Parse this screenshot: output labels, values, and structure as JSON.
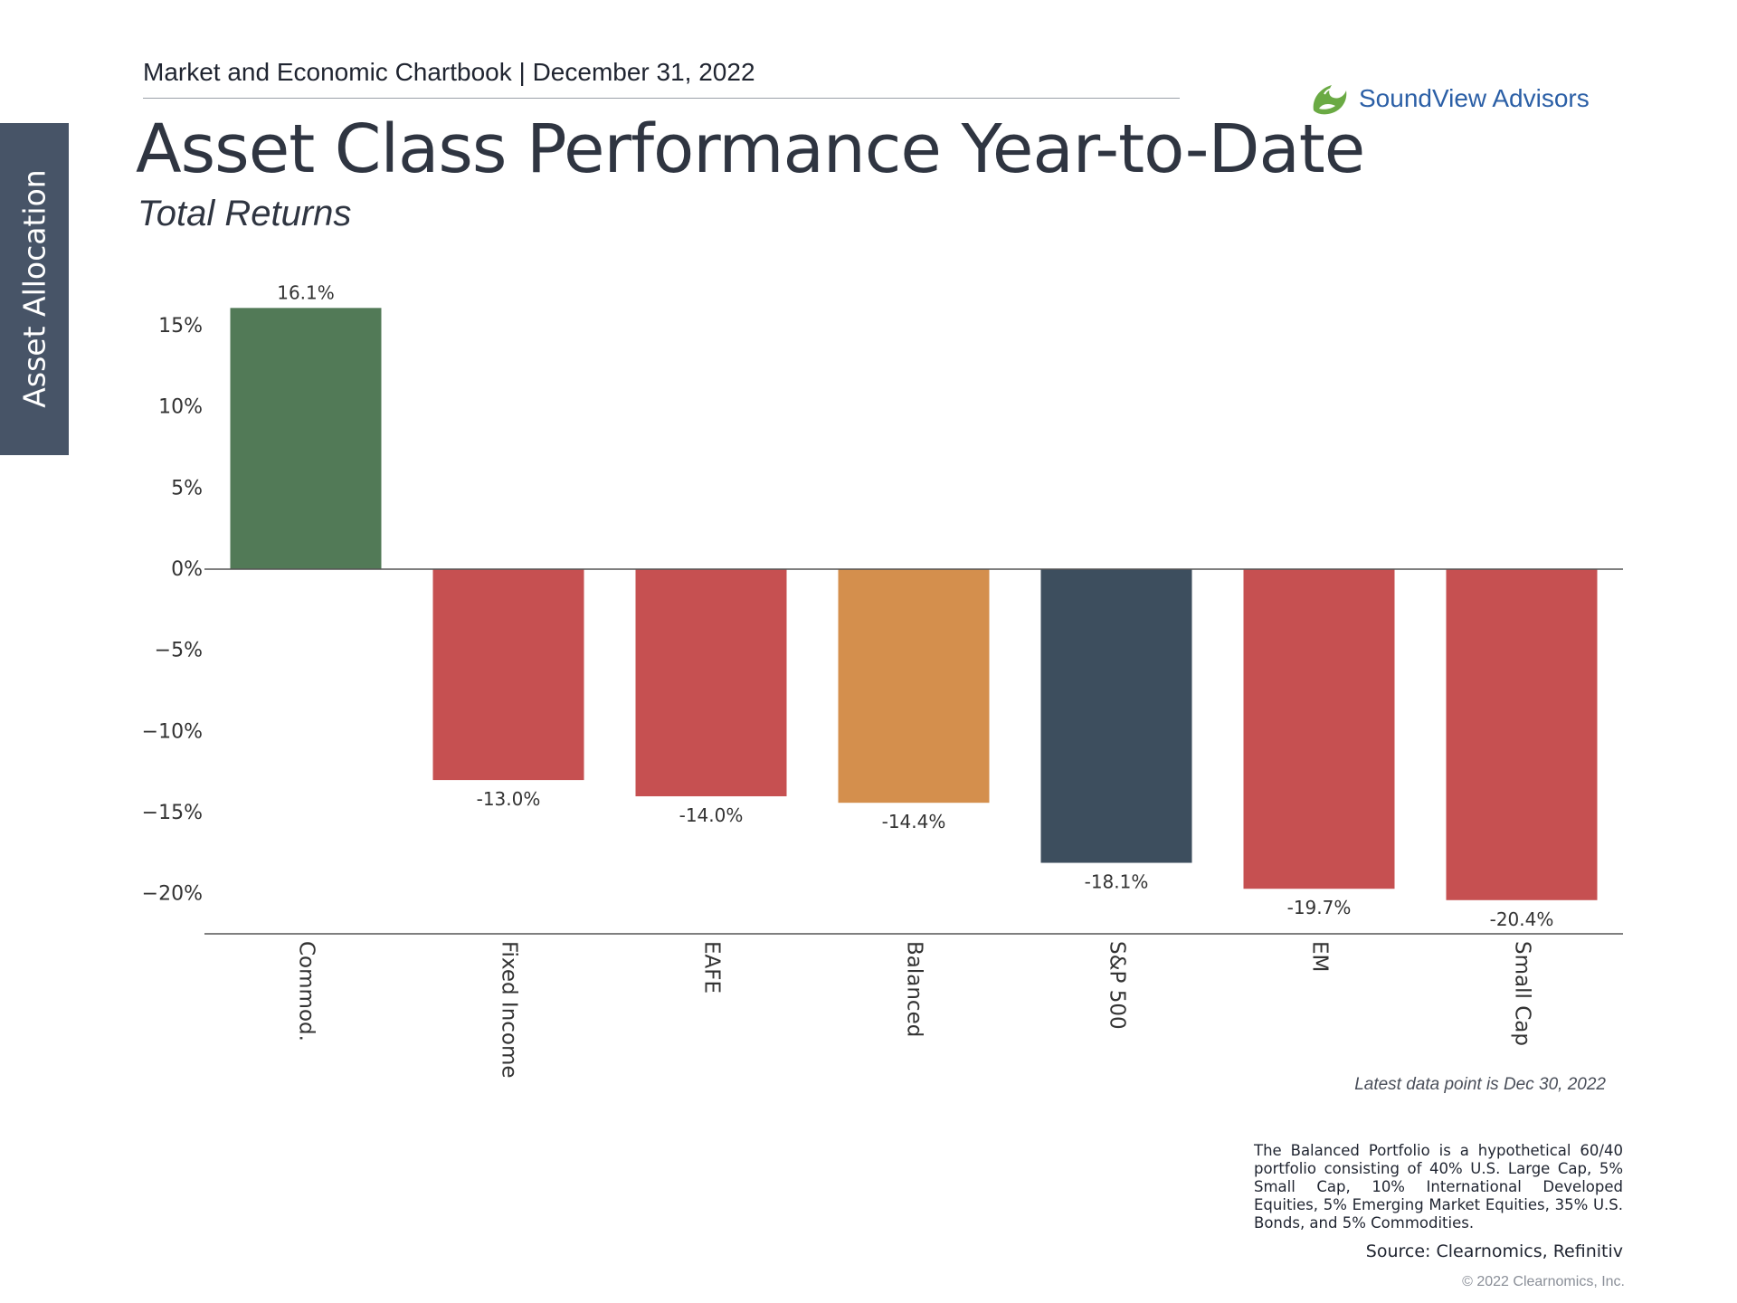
{
  "side_tab": {
    "label": "Asset Allocation"
  },
  "header": {
    "text": "Market and Economic Chartbook | December 31, 2022"
  },
  "logo": {
    "name": "SoundView Advisors",
    "icon": "soundview-leaf-logo"
  },
  "title": "Asset Class Performance Year-to-Date",
  "subtitle": "Total Returns",
  "chart_data": {
    "type": "bar",
    "categories": [
      "Commod.",
      "Fixed Income",
      "EAFE",
      "Balanced",
      "S&P 500",
      "EM",
      "Small Cap"
    ],
    "values": [
      16.1,
      -13.0,
      -14.0,
      -14.4,
      -18.1,
      -19.7,
      -20.4
    ],
    "value_labels": [
      "16.1%",
      "-13.0%",
      "-14.0%",
      "-14.4%",
      "-18.1%",
      "-19.7%",
      "-20.4%"
    ],
    "colors": [
      "#527a57",
      "#c65051",
      "#c65051",
      "#d48f4d",
      "#3d4e5e",
      "#c65051",
      "#c65051"
    ],
    "yticks": [
      15,
      10,
      5,
      0,
      -5,
      -10,
      -15,
      -20
    ],
    "ytick_labels": [
      "15%",
      "10%",
      "5%",
      "0%",
      "−5%",
      "−10%",
      "−15%",
      "−20%"
    ],
    "ylim": [
      -22.5,
      16.5
    ],
    "title": "",
    "xlabel": "",
    "ylabel": "",
    "x_tick_rotation": 90,
    "grid": false,
    "legend": "none"
  },
  "notes": {
    "latest": "Latest data point is Dec 30, 2022",
    "balanced": "The Balanced Portfolio is a hypothetical 60/40 portfolio consisting of 40% U.S. Large Cap, 5% Small Cap, 10% International Developed Equities, 5% Emerging Market Equities, 35% U.S. Bonds, and 5% Commodities.",
    "source": "Source: Clearnomics, Refinitiv",
    "copyright": "© 2022 Clearnomics, Inc."
  }
}
